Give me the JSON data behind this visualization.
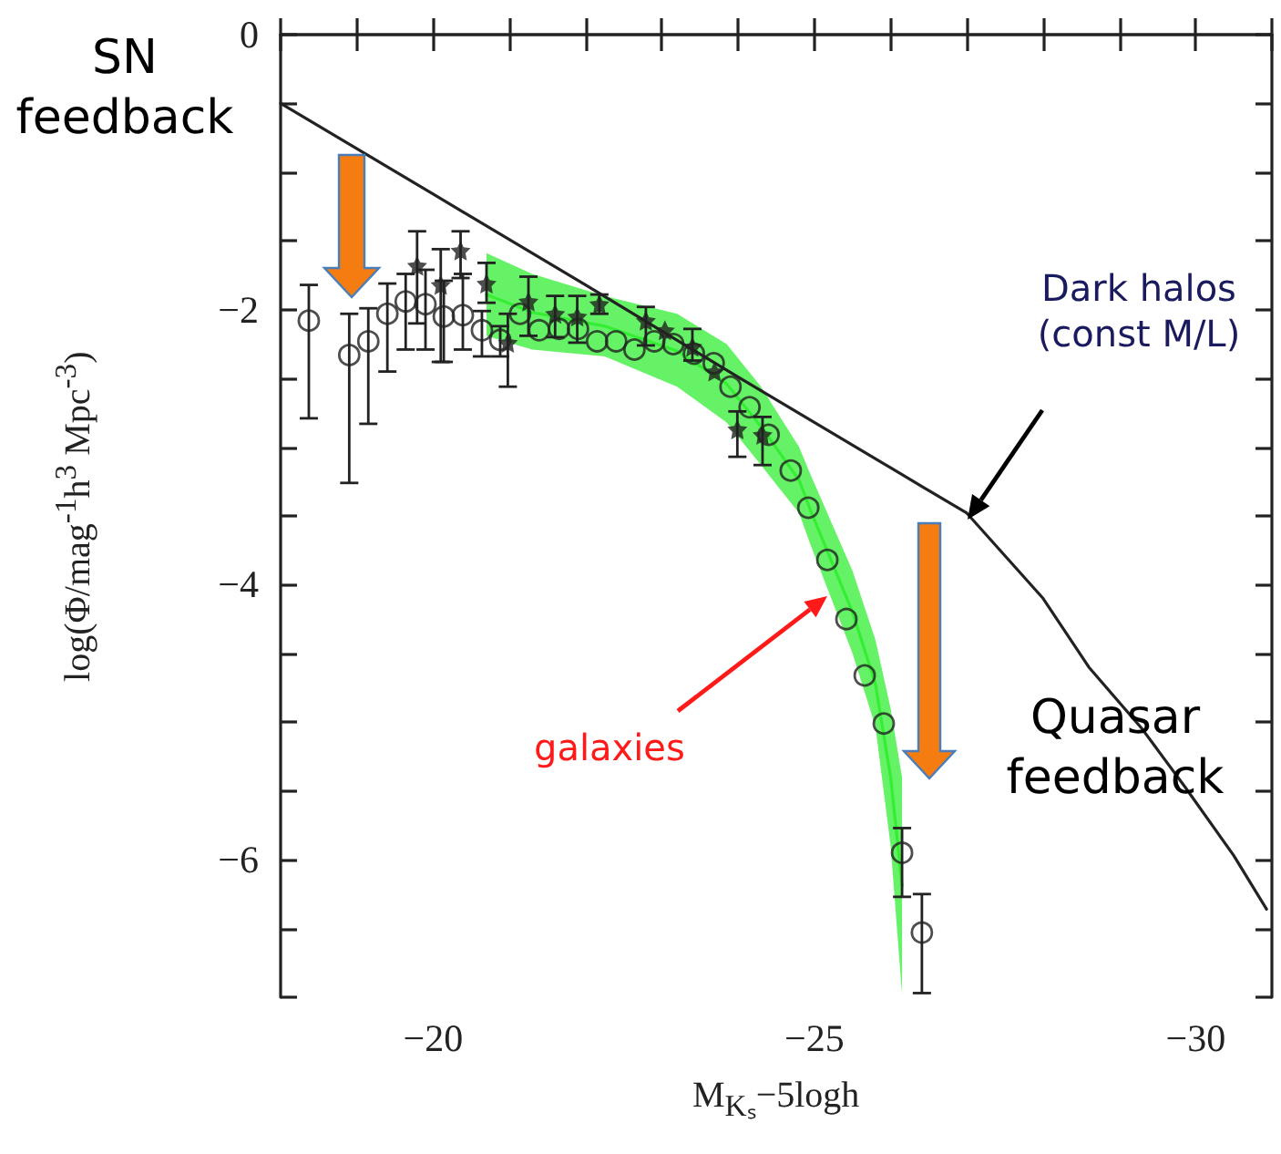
{
  "chart_data": {
    "type": "scatter",
    "xlabel": "M$_{Kₛ}$−5logh",
    "ylabel": "log(Φ/mag$^{-1}$h$^{3}$ Mpc$^{-3}$)",
    "xlim": [
      -18,
      -31
    ],
    "ylim": [
      -7,
      0
    ],
    "xticks": [
      {
        "value": -18,
        "label": null
      },
      {
        "value": -19,
        "label": null
      },
      {
        "value": -20,
        "label": "−20"
      },
      {
        "value": -21,
        "label": null
      },
      {
        "value": -22,
        "label": null
      },
      {
        "value": -23,
        "label": null
      },
      {
        "value": -24,
        "label": null
      },
      {
        "value": -25,
        "label": "−25"
      },
      {
        "value": -26,
        "label": null
      },
      {
        "value": -27,
        "label": null
      },
      {
        "value": -28,
        "label": null
      },
      {
        "value": -29,
        "label": null
      },
      {
        "value": -30,
        "label": "−30"
      },
      {
        "value": -31,
        "label": null
      }
    ],
    "yticks": [
      {
        "value": 0,
        "label": "0"
      },
      {
        "value": -0.5,
        "label": null
      },
      {
        "value": -1,
        "label": null
      },
      {
        "value": -1.5,
        "label": null
      },
      {
        "value": -2,
        "label": "−2"
      },
      {
        "value": -2.5,
        "label": null
      },
      {
        "value": -3,
        "label": null
      },
      {
        "value": -3.5,
        "label": null
      },
      {
        "value": -4,
        "label": "−4"
      },
      {
        "value": -4.5,
        "label": null
      },
      {
        "value": -5,
        "label": null
      },
      {
        "value": -5.5,
        "label": null
      },
      {
        "value": -6,
        "label": "−6"
      },
      {
        "value": -6.5,
        "label": null
      },
      {
        "value": -7,
        "label": null
      }
    ],
    "grid": false,
    "series": [
      {
        "type": "line",
        "color": "#33ee33",
        "marker": "none",
        "x": [
          -20.7,
          -21.3,
          -22.25,
          -23.2,
          -23.85,
          -24.3,
          -24.8,
          -24.95,
          -25.5,
          -25.8,
          -26.0,
          -26.15
        ],
        "values": [
          -1.89,
          -2.02,
          -2.12,
          -2.3,
          -2.54,
          -2.85,
          -3.24,
          -3.46,
          -4.2,
          -4.72,
          -5.4,
          -6.19
        ],
        "lower": [
          -2.19,
          -2.29,
          -2.34,
          -2.56,
          -2.82,
          -3.13,
          -3.48,
          -3.71,
          -4.5,
          -5.03,
          -5.9,
          -6.98
        ],
        "upper": [
          -1.59,
          -1.74,
          -1.9,
          -2.03,
          -2.25,
          -2.56,
          -3.0,
          -3.2,
          -3.9,
          -4.4,
          -4.9,
          -5.4
        ]
      },
      {
        "type": "line",
        "color": "#222222",
        "marker": "none",
        "line_style": "solid",
        "x": [
          -18,
          -20,
          -22,
          -24,
          -26,
          -27,
          -28,
          -28.6,
          -29.3,
          -29.86,
          -30.5,
          -30.93
        ],
        "values": [
          -0.5,
          -1.16,
          -1.82,
          -2.49,
          -3.15,
          -3.48,
          -4.1,
          -4.6,
          -5.05,
          -5.47,
          -5.97,
          -6.36
        ]
      },
      {
        "color": "#222222",
        "marker": "circle",
        "x": [
          -18.37,
          -18.9,
          -19.15,
          -19.4,
          -19.64,
          -19.9,
          -20.14,
          -20.39,
          -20.64,
          -20.88,
          -21.14,
          -21.39,
          -21.65,
          -21.9,
          -22.15,
          -22.4,
          -22.64,
          -22.9,
          -23.15,
          -23.42,
          -23.68,
          -23.9,
          -24.15,
          -24.4,
          -24.69,
          -24.92,
          -25.17,
          -25.42,
          -25.66,
          -25.91,
          -26.15,
          -26.41
        ],
        "values": [
          -2.08,
          -2.33,
          -2.23,
          -2.03,
          -1.94,
          -1.96,
          -2.05,
          -2.04,
          -2.15,
          -2.22,
          -2.03,
          -2.15,
          -2.14,
          -2.14,
          -2.23,
          -2.23,
          -2.29,
          -2.23,
          -2.25,
          -2.32,
          -2.39,
          -2.56,
          -2.71,
          -2.91,
          -3.17,
          -3.44,
          -3.82,
          -4.25,
          -4.66,
          -5.01,
          -5.95,
          -6.53
        ],
        "errors": [
          [
            -2.79,
            -1.82
          ],
          [
            -3.26,
            -2.03
          ],
          [
            -2.83,
            -1.99
          ],
          [
            -2.45,
            -1.81
          ],
          [
            -2.29,
            -1.74
          ],
          [
            -2.29,
            -1.71
          ],
          [
            -2.38,
            -1.79
          ],
          [
            -2.29,
            -1.74
          ],
          [
            -2.34,
            -2.01
          ],
          [
            -2.34,
            -2.12
          ],
          null,
          null,
          null,
          null,
          null,
          null,
          null,
          null,
          null,
          null,
          null,
          null,
          null,
          null,
          null,
          null,
          null,
          null,
          null,
          null,
          [
            -6.27,
            -5.77
          ],
          [
            -6.97,
            -6.25
          ]
        ]
      },
      {
        "color": "#222222",
        "marker": "star",
        "x": [
          -19.79,
          -20.1,
          -20.36,
          -20.7,
          -20.98,
          -21.25,
          -21.6,
          -21.89,
          -22.18,
          -22.79,
          -23.04,
          -23.4,
          -23.69,
          -23.99,
          -24.32
        ],
        "values": [
          -1.68,
          -1.82,
          -1.57,
          -1.81,
          -2.24,
          -1.94,
          -2.03,
          -2.05,
          -1.96,
          -2.08,
          -2.15,
          -2.27,
          -2.45,
          -2.87,
          -2.91
        ],
        "errors": [
          [
            -2.1,
            -1.43
          ],
          [
            -2.38,
            -1.56
          ],
          [
            -1.77,
            -1.43
          ],
          [
            -1.95,
            -1.66
          ],
          [
            -2.56,
            -2.03
          ],
          [
            -2.19,
            -1.76
          ],
          [
            -2.2,
            -1.9
          ],
          [
            -2.24,
            -1.9
          ],
          [
            -2.03,
            -1.89
          ],
          [
            -2.26,
            -1.98
          ],
          null,
          [
            -2.37,
            -2.14
          ],
          null,
          [
            -3.07,
            -2.74
          ],
          [
            -3.13,
            -2.78
          ]
        ]
      }
    ],
    "annotations": [
      "SN feedback",
      "Dark halos (const M/L)",
      "galaxies",
      "Quasar feedback"
    ]
  }
}
